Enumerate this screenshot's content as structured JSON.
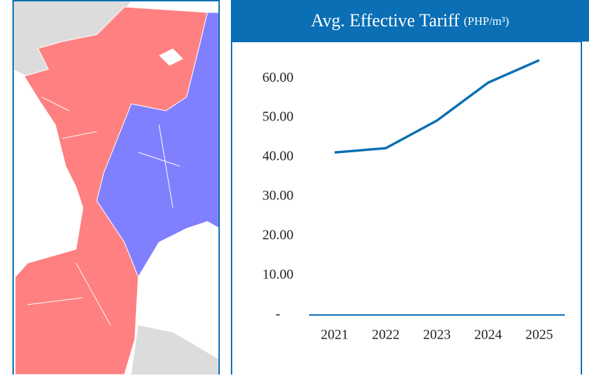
{
  "chart_data": {
    "type": "line",
    "title": "Avg. Effective Tariff",
    "subtitle": "(PHP/m³)",
    "categories": [
      "2021",
      "2022",
      "2023",
      "2024",
      "2025"
    ],
    "series": [
      {
        "name": "Avg. Effective Tariff",
        "color": "#0a6fb5",
        "values": [
          41.2,
          42.3,
          49.3,
          58.9,
          64.6
        ]
      }
    ],
    "ylim": [
      0,
      66
    ],
    "yticks": [
      {
        "value": 0,
        "label": "-"
      },
      {
        "value": 10,
        "label": "10.00"
      },
      {
        "value": 20,
        "label": "20.00"
      },
      {
        "value": 30,
        "label": "30.00"
      },
      {
        "value": 40,
        "label": "40.00"
      },
      {
        "value": 50,
        "label": "50.00"
      },
      {
        "value": 60,
        "label": "60.00"
      }
    ]
  }
}
